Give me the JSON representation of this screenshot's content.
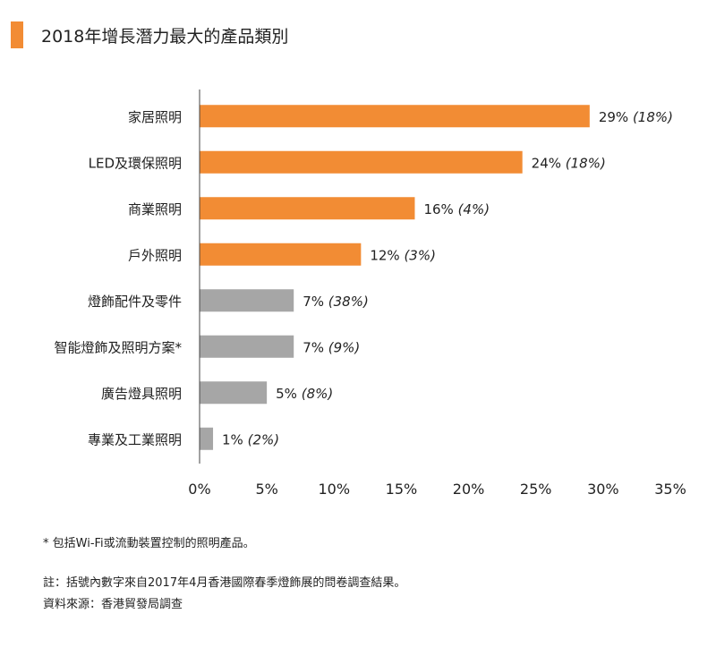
{
  "title": "2018年增長潛力最大的產品類別",
  "chart_data": {
    "type": "bar",
    "orientation": "horizontal",
    "title": "2018年增長潛力最大的產品類別",
    "categories": [
      "家居照明",
      "LED及環保照明",
      "商業照明",
      "戶外照明",
      "燈飾配件及零件",
      "智能燈飾及照明方案*",
      "廣告燈具照明",
      "專業及工業照明"
    ],
    "values": [
      29,
      24,
      16,
      12,
      7,
      7,
      5,
      1
    ],
    "value_labels": [
      "29%",
      "24%",
      "16%",
      "12%",
      "7%",
      "7%",
      "5%",
      "1%"
    ],
    "secondary_labels": [
      "(18%)",
      "(18%)",
      "(4%)",
      "(3%)",
      "(38%)",
      "(9%)",
      "(8%)",
      "(2%)"
    ],
    "bar_colors": [
      "#f28c34",
      "#f28c34",
      "#f28c34",
      "#f28c34",
      "#a6a6a6",
      "#a6a6a6",
      "#a6a6a6",
      "#a6a6a6"
    ],
    "xlim": [
      0,
      35
    ],
    "xticks": [
      0,
      5,
      10,
      15,
      20,
      25,
      30,
      35
    ],
    "xtick_labels": [
      "0%",
      "5%",
      "10%",
      "15%",
      "20%",
      "25%",
      "30%",
      "35%"
    ],
    "grid": false
  },
  "notes": {
    "footnote": "* 包括Wi-Fi或流動裝置控制的照明產品。",
    "remark": "註：括號內數字來自2017年4月香港國際春季燈飾展的問卷調查結果。",
    "source": "資料來源：香港貿發局調查"
  }
}
